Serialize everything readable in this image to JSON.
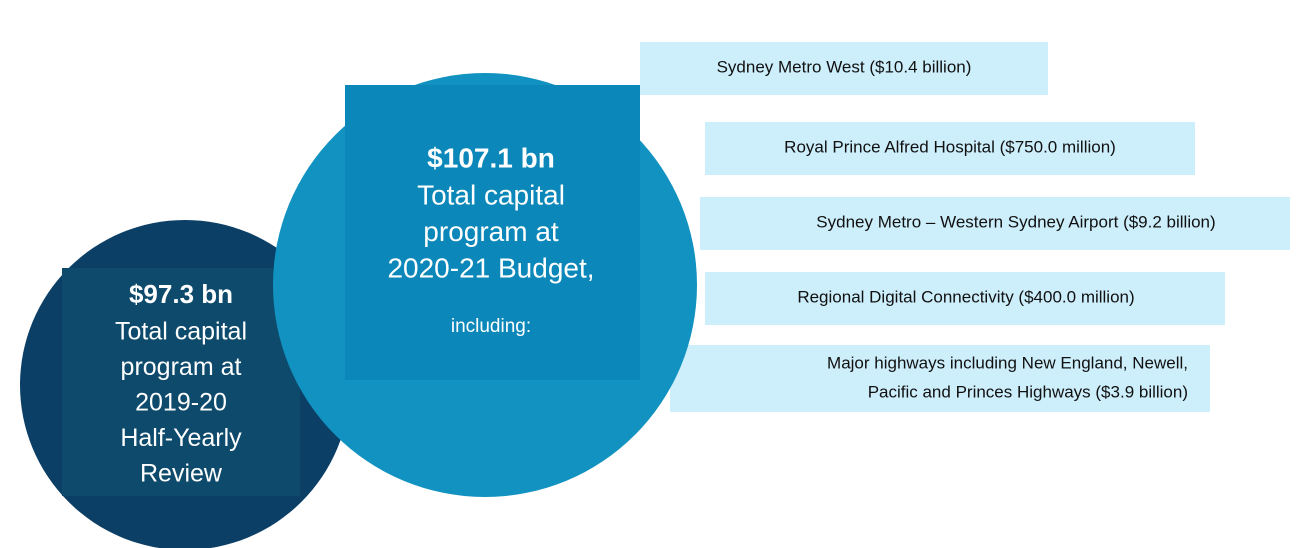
{
  "left_circle": {
    "amount": "$97.3 bn",
    "lines": [
      "Total capital",
      "program at",
      "2019-20",
      "Half-Yearly",
      "Review"
    ]
  },
  "right_circle": {
    "amount": "$107.1 bn",
    "lines": [
      "Total capital",
      "program at",
      "2020-21 Budget,"
    ],
    "note": "including:"
  },
  "items": [
    {
      "lines": [
        "Sydney Metro West ($10.4 billion)"
      ]
    },
    {
      "lines": [
        "Royal Prince Alfred Hospital ($750.0 million)"
      ]
    },
    {
      "lines": [
        "Sydney Metro – Western Sydney Airport ($9.2 billion)"
      ]
    },
    {
      "lines": [
        "Regional Digital Connectivity ($400.0 million)"
      ]
    },
    {
      "lines": [
        "Major highways including New England, Newell,",
        "Pacific and Princes Highways ($3.9 billion)"
      ]
    }
  ]
}
